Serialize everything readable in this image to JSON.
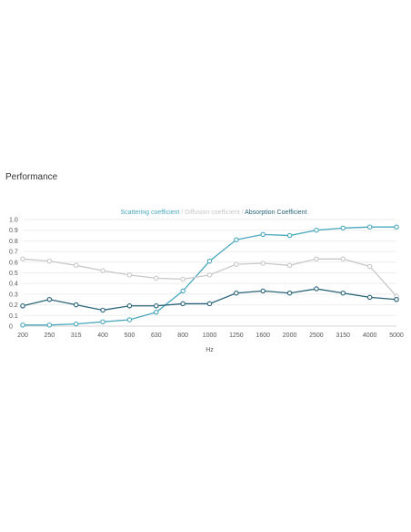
{
  "section": {
    "title": "Performance"
  },
  "chart_data": {
    "type": "line",
    "title": "",
    "xlabel": "Hz",
    "ylabel": "",
    "ylim": [
      0,
      1.0
    ],
    "yticks": [
      "0",
      "0.1",
      "0.2",
      "0.3",
      "0.4",
      "0.5",
      "0.6",
      "0.7",
      "0.8",
      "0.9",
      "1.0"
    ],
    "categories": [
      "200",
      "250",
      "315",
      "400",
      "500",
      "630",
      "800",
      "1000",
      "1250",
      "1600",
      "2000",
      "2500",
      "3150",
      "4000",
      "5000"
    ],
    "grid": true,
    "legend_position": "top-center",
    "series": [
      {
        "name": "Scattering coefficient",
        "color": "#4aa8bc",
        "values": [
          0.01,
          0.01,
          0.02,
          0.04,
          0.06,
          0.13,
          0.33,
          0.61,
          0.81,
          0.86,
          0.85,
          0.9,
          0.92,
          0.93,
          0.93
        ]
      },
      {
        "name": "Diffusion coefficient",
        "color": "#c8c8c8",
        "values": [
          0.63,
          0.61,
          0.57,
          0.52,
          0.48,
          0.45,
          0.44,
          0.48,
          0.58,
          0.59,
          0.57,
          0.63,
          0.63,
          0.56,
          0.28
        ]
      },
      {
        "name": "Absorption Coefficient",
        "color": "#2a6478",
        "values": [
          0.19,
          0.25,
          0.2,
          0.15,
          0.19,
          0.19,
          0.21,
          0.21,
          0.31,
          0.33,
          0.31,
          0.35,
          0.31,
          0.27,
          0.25
        ]
      }
    ],
    "legend_separator": " / "
  }
}
